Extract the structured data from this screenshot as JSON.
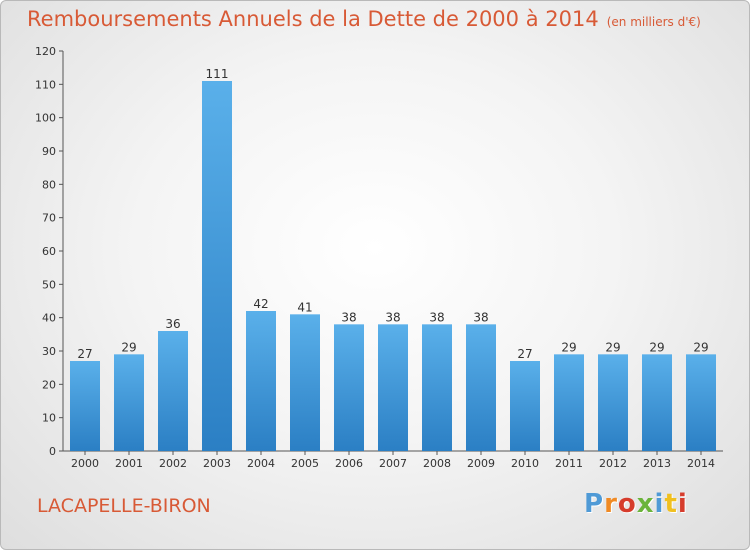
{
  "header": {
    "title": "Remboursements Annuels de la Dette de 2000 à 2014",
    "unit": "(en milliers d'€)"
  },
  "footer": {
    "commune": "LACAPELLE-BIRON",
    "logo_text": "Proxiti"
  },
  "colors": {
    "title": "#d85a36",
    "bar_light": "#5ab0ea",
    "bar_dark": "#2b7fc4",
    "logo": [
      "#4f9ad6",
      "#f08a24",
      "#d63c2c",
      "#6bb43b",
      "#4f9ad6",
      "#f0c020",
      "#d63c2c"
    ]
  },
  "chart_data": {
    "type": "bar",
    "title": "Remboursements Annuels de la Dette de 2000 à 2014",
    "categories": [
      "2000",
      "2001",
      "2002",
      "2003",
      "2004",
      "2005",
      "2006",
      "2007",
      "2008",
      "2009",
      "2010",
      "2011",
      "2012",
      "2013",
      "2014"
    ],
    "values": [
      27,
      29,
      36,
      111,
      42,
      41,
      38,
      38,
      38,
      38,
      27,
      29,
      29,
      29,
      29
    ],
    "ylim": [
      0,
      120
    ],
    "yticks": [
      0,
      10,
      20,
      30,
      40,
      50,
      60,
      70,
      80,
      90,
      100,
      110,
      120
    ],
    "grid": false
  }
}
